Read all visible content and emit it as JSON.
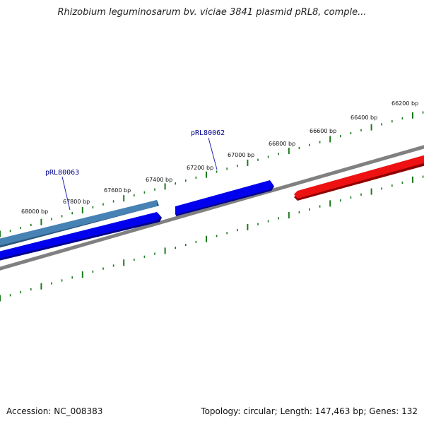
{
  "title": "Rhizobium leguminosarum bv. viciae 3841 plasmid pRL8, comple...",
  "footer": {
    "accession": "Accession: NC_008383",
    "summary": "Topology: circular; Length: 147,463 bp; Genes: 132"
  },
  "colors": {
    "backbone": "#808080",
    "tick": "#1a7a1a",
    "forward_gene": "#0000ee",
    "forward_gene_dark": "#00008f",
    "reverse_gene": "#ee1111",
    "reverse_gene_dark": "#8f0000",
    "highlight_gene": "#4682b4",
    "highlight_gene_dark": "#2c5578",
    "gene_label": "#00008b",
    "leader_line": "#2323b8"
  },
  "scale_labels": [
    "66200 bp",
    "66400 bp",
    "66600 bp",
    "66800 bp",
    "67000 bp",
    "67200 bp",
    "67400 bp",
    "67600 bp",
    "67800 bp",
    "68000 bp"
  ],
  "genes": [
    {
      "id": "pRL80063",
      "label": "pRL80063",
      "track": "outer",
      "style": "highlight"
    },
    {
      "id": "pRL80063_inner",
      "label": "",
      "track": "inner",
      "style": "forward"
    },
    {
      "id": "pRL80062",
      "label": "pRL80062",
      "track": "inner",
      "style": "forward"
    },
    {
      "id": "reverse_gene",
      "label": "",
      "track": "inner",
      "style": "reverse"
    }
  ]
}
